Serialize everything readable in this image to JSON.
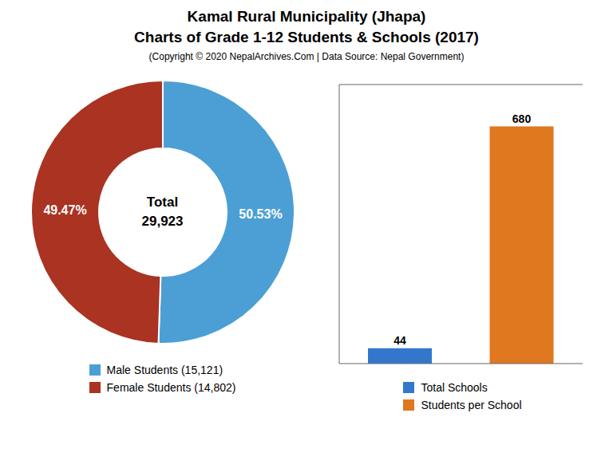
{
  "chart_data": [
    {
      "type": "pie",
      "title": "Kamal Rural Municipality (Jhapa)\nCharts of Grade 1-12 Students & Schools (2017)",
      "subtitle": "(Copyright © 2020 NepalArchives.Com | Data Source: Nepal Government)",
      "categories": [
        "Male Students (15,121)",
        "Female Students (14,802)"
      ],
      "values": [
        50.53,
        49.47
      ],
      "value_labels": [
        "50.53%",
        "49.47%"
      ],
      "data_labels": true,
      "colors": [
        "#4c9fd4",
        "#aa3322"
      ],
      "annotations": [
        "Total",
        "29,923"
      ],
      "legend": "bottom"
    },
    {
      "type": "bar",
      "categories": [
        "Total Schools",
        "Students per School"
      ],
      "values": [
        44,
        680
      ],
      "colors": [
        "#3377cc",
        "#e07820"
      ],
      "ylim": [
        0,
        800
      ],
      "tick_labels": false,
      "data_labels": true,
      "legend": "bottom",
      "grid": false
    }
  ]
}
